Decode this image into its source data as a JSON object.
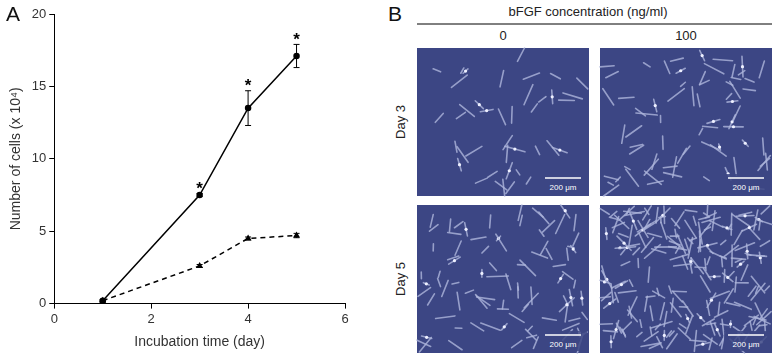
{
  "chart_data": {
    "type": "line",
    "x_label": "Incubation time (day)",
    "y_label": "Number of cells (x 10⁴)",
    "x": [
      1,
      3,
      4,
      5
    ],
    "series": [
      {
        "color": "#000000",
        "line_style": "solid",
        "marker": "circle",
        "values": [
          0.2,
          7.5,
          13.5,
          17.1
        ],
        "error": [
          0.05,
          0.1,
          1.2,
          0.8
        ]
      },
      {
        "color": "#000000",
        "line_style": "dashed",
        "marker": "triangle",
        "values": [
          0.2,
          2.6,
          4.5,
          4.7
        ],
        "error": [
          0.05,
          0.1,
          0.1,
          0.15
        ]
      }
    ],
    "annotations": [
      {
        "x": 3,
        "text": "*"
      },
      {
        "x": 4,
        "text": "*"
      },
      {
        "x": 5,
        "text": "*"
      }
    ],
    "xlim": [
      0,
      6
    ],
    "xticks": [
      0,
      2,
      4,
      6
    ],
    "ylim": [
      0,
      20
    ],
    "yticks": [
      0,
      5,
      10,
      15,
      20
    ],
    "grid": false
  },
  "panel_labels": [
    "A",
    "B"
  ],
  "micrographs": {
    "header": "bFGF concentration (ng/ml)",
    "columns": [
      "0",
      "100"
    ],
    "rows": [
      "Day 3",
      "Day 5"
    ],
    "scale_bar": "200 μm"
  }
}
